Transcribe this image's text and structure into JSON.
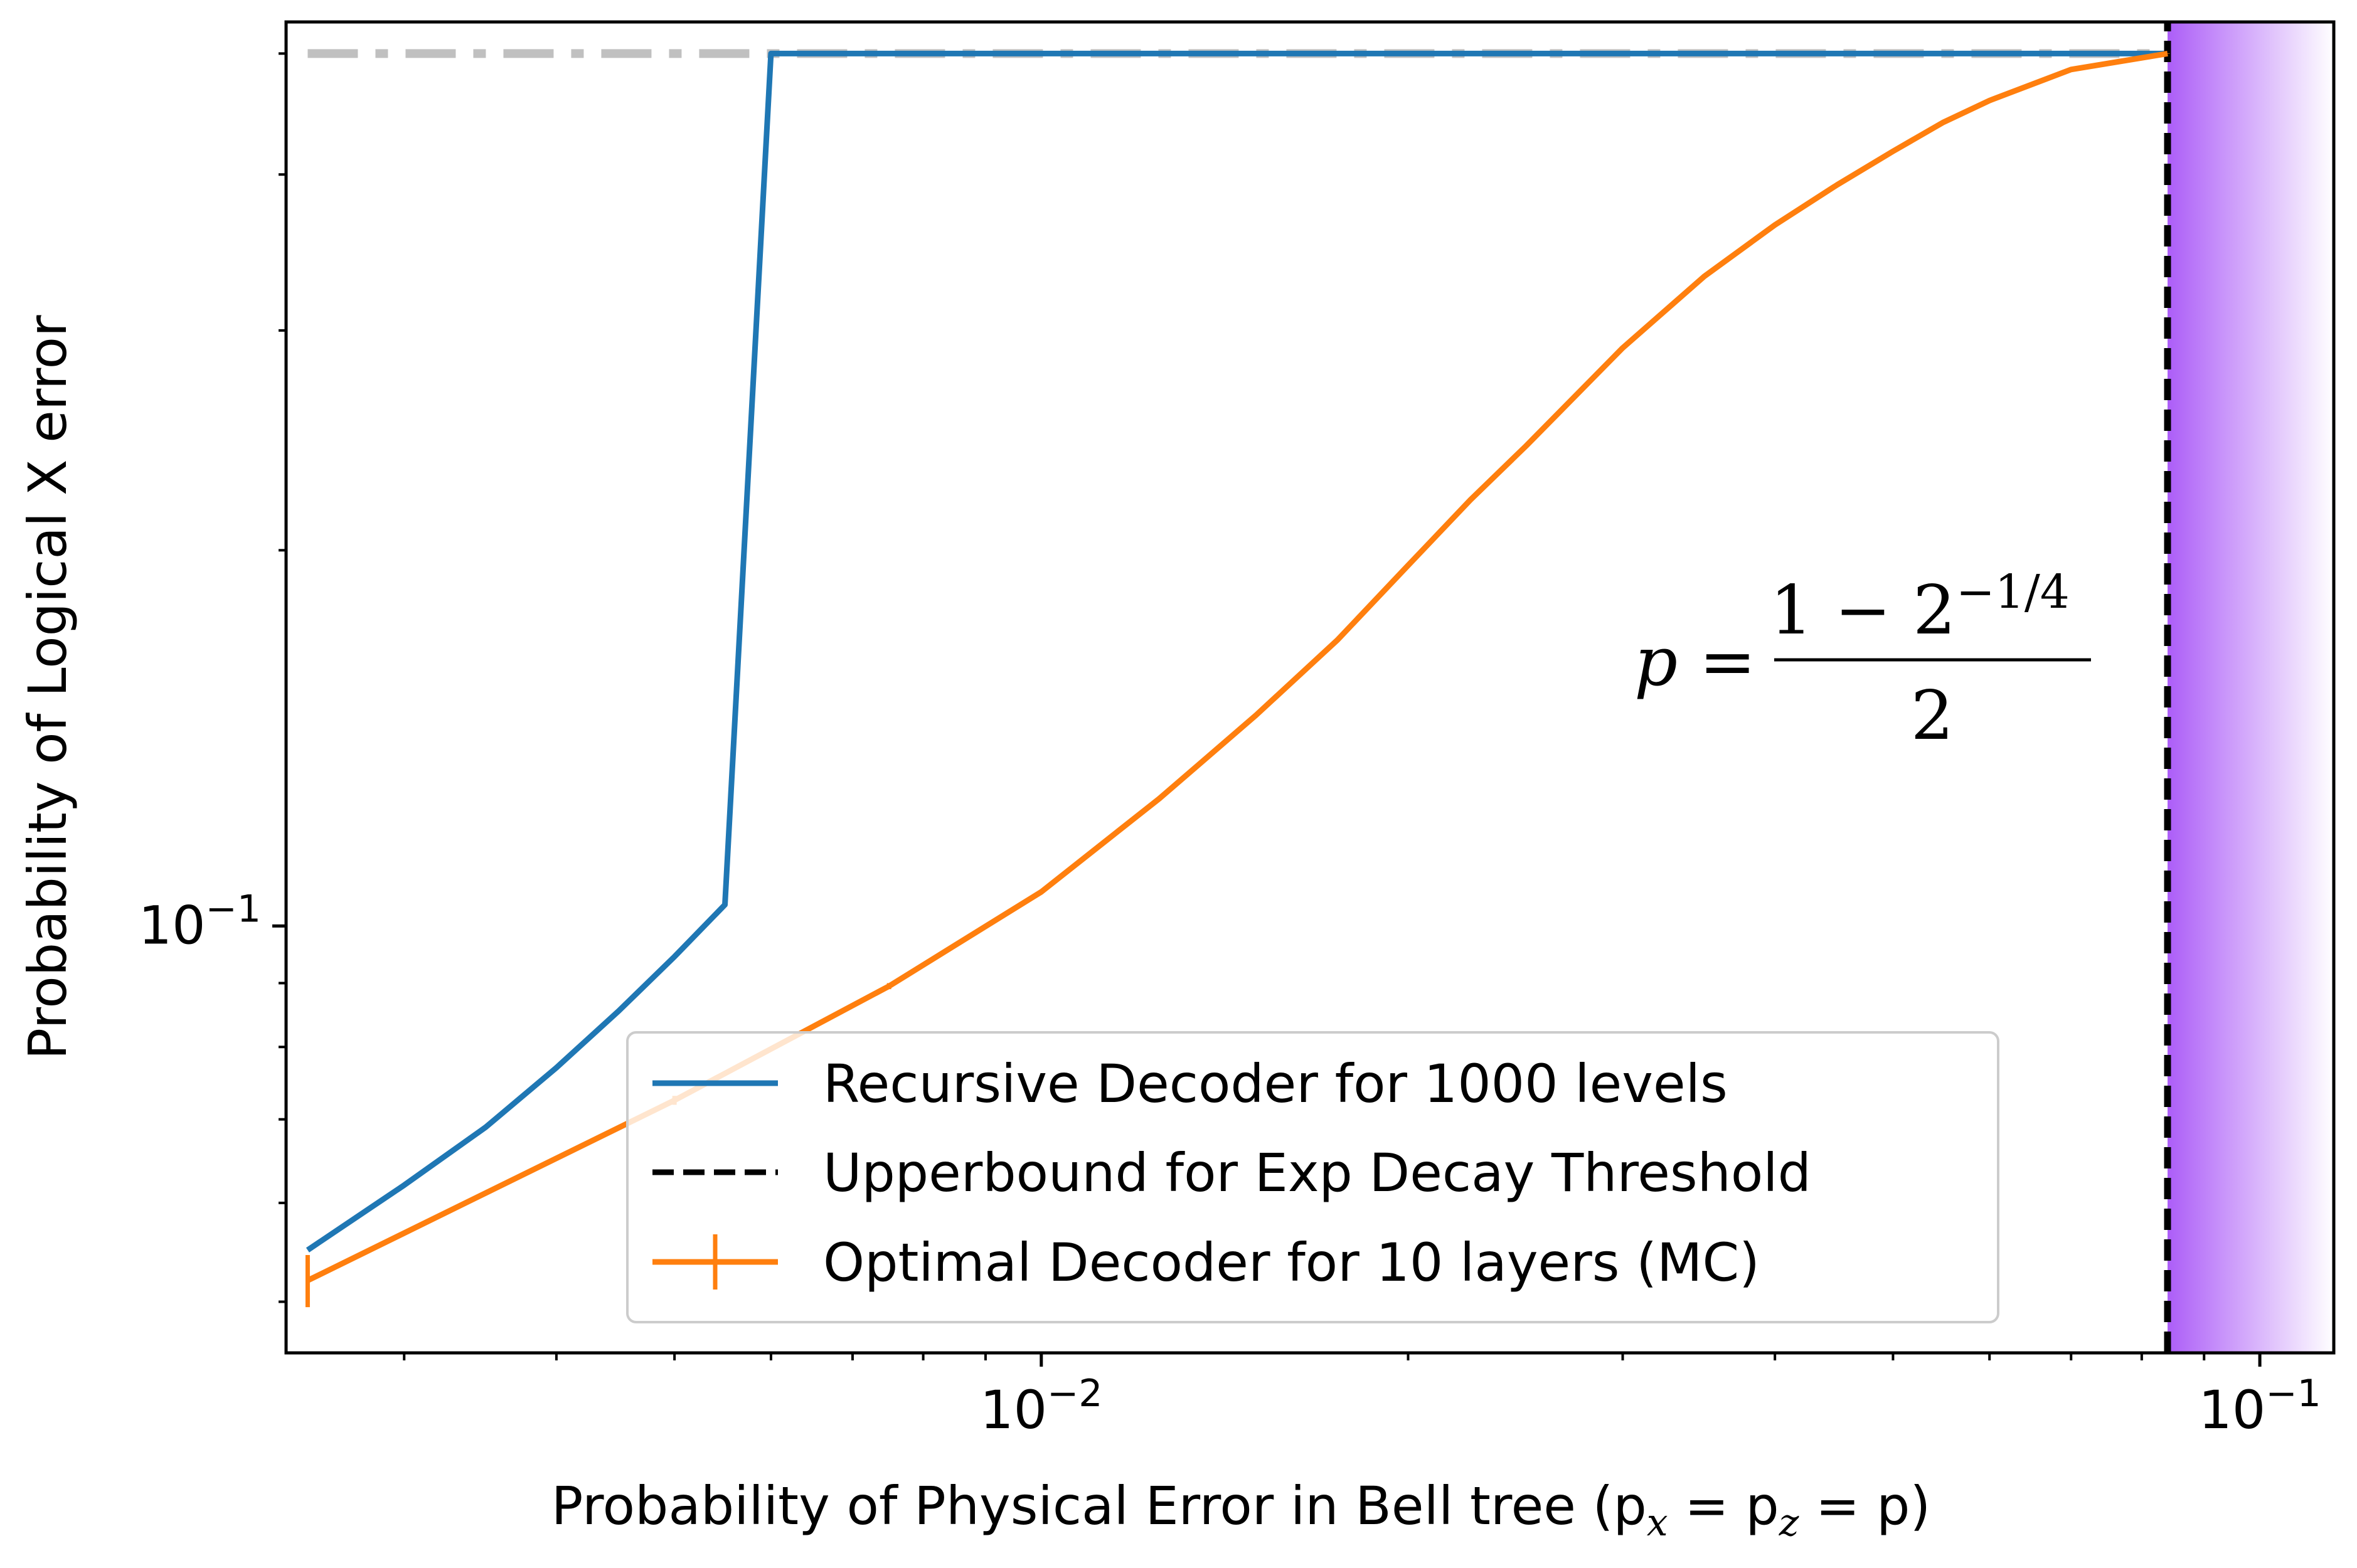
{
  "chart_data": {
    "type": "line",
    "xlabel": "Probability of Physical Error in Bell tree (p",
    "xlabel_sub_x": "x",
    "xlabel_eq": " = p",
    "xlabel_sub_z": "z",
    "xlabel_tail": " = p)",
    "ylabel": "Probability of Logical X error",
    "xscale": "log",
    "yscale": "log",
    "xlim": [
      0.0024,
      0.115
    ],
    "ylim": [
      0.0455,
      0.53
    ],
    "xticks": [
      {
        "value": 0.01,
        "base": "10",
        "exp": "−2"
      },
      {
        "value": 0.1,
        "base": "10",
        "exp": "−1"
      }
    ],
    "yticks": [
      {
        "value": 0.1,
        "base": "10",
        "exp": "−1"
      }
    ],
    "grid": false,
    "legend_position": "lower-right",
    "series": [
      {
        "name": "Recursive Decoder for 1000 levels",
        "color": "#1f77b4",
        "style": "solid",
        "x": [
          0.0025,
          0.003,
          0.0035,
          0.004,
          0.0045,
          0.005,
          0.0055,
          0.006,
          0.01,
          0.02,
          0.05,
          0.084
        ],
        "y": [
          0.055,
          0.062,
          0.069,
          0.077,
          0.0855,
          0.0945,
          0.104,
          0.5,
          0.5,
          0.5,
          0.5,
          0.5
        ]
      },
      {
        "name": "Upperbound for Exp Decay Threshold",
        "color": "#000000",
        "style": "dashed",
        "x": [
          0.084,
          0.084
        ],
        "y": [
          0.0455,
          0.53
        ]
      },
      {
        "name": "Optimal Decoder for 10 layers (MC)",
        "color": "#ff7f0e",
        "style": "solid-errorbar",
        "x": [
          0.0025,
          0.005,
          0.0075,
          0.01,
          0.0125,
          0.015,
          0.0175,
          0.02,
          0.0225,
          0.025,
          0.03,
          0.035,
          0.04,
          0.045,
          0.05,
          0.055,
          0.06,
          0.07,
          0.084
        ],
        "y": [
          0.052,
          0.0725,
          0.0895,
          0.1065,
          0.1265,
          0.1475,
          0.1695,
          0.1945,
          0.2195,
          0.2425,
          0.2905,
          0.3315,
          0.3645,
          0.3925,
          0.4175,
          0.4405,
          0.4585,
          0.4855,
          0.5
        ],
        "yerr": [
          0.0025,
          0.0006,
          0.0005,
          0.0003,
          0.0003,
          0.0002,
          0.0002,
          0.0002,
          0.0002,
          0.0002,
          0.0002,
          0.0002,
          0.0002,
          0.0002,
          0.0002,
          0.0002,
          0.0002,
          0.0002,
          0.0002
        ]
      }
    ],
    "reference_line": {
      "y": 0.5,
      "x": [
        0.0025,
        0.084
      ],
      "color": "#c0c0c0",
      "style": "dashdot"
    },
    "shaded_region": {
      "x": [
        0.084,
        0.115
      ],
      "color": "#a855f7",
      "gradient": "fade-right"
    },
    "annotation": {
      "lhs": "p =",
      "numerator_base": "1 − 2",
      "numerator_exp": "−1/4",
      "denominator": "2"
    }
  }
}
